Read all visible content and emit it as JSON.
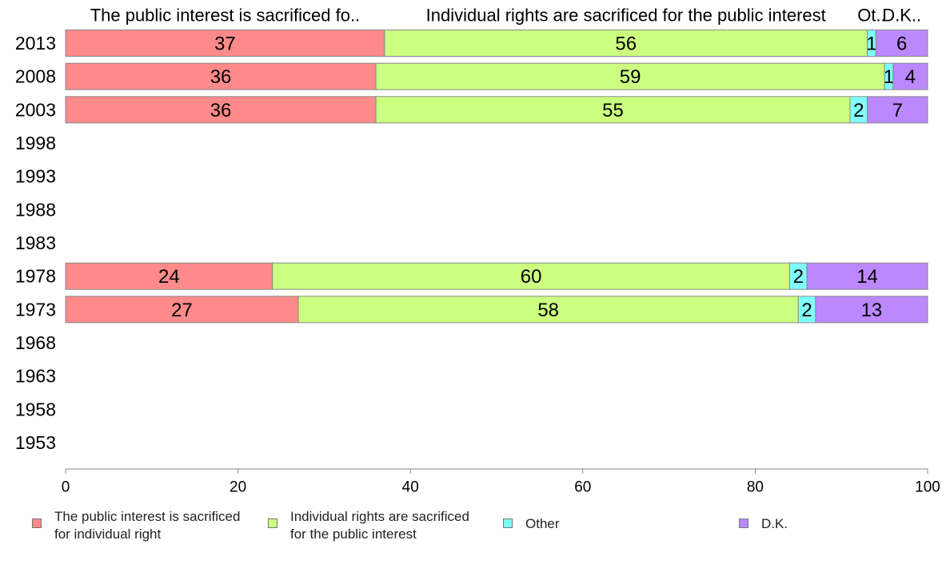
{
  "chart_data": {
    "type": "bar",
    "orientation": "horizontal",
    "stacked": true,
    "categories": [
      "2013",
      "2008",
      "2003",
      "1998",
      "1993",
      "1988",
      "1983",
      "1978",
      "1973",
      "1968",
      "1963",
      "1958",
      "1953"
    ],
    "series": [
      {
        "name": "The public interest is sacrificed for individual right",
        "header": "The public interest is sacrificed fo..",
        "color": "#ff8a8a",
        "values": [
          37,
          36,
          36,
          null,
          null,
          null,
          null,
          24,
          27,
          null,
          null,
          null,
          null
        ]
      },
      {
        "name": "Individual rights are sacrificed for the public interest",
        "header": "Individual rights are sacrificed for the public interest",
        "color": "#ccff80",
        "values": [
          56,
          59,
          55,
          null,
          null,
          null,
          null,
          60,
          58,
          null,
          null,
          null,
          null
        ]
      },
      {
        "name": "Other",
        "header": "Ot..",
        "color": "#80ffff",
        "values": [
          1,
          1,
          2,
          null,
          null,
          null,
          null,
          2,
          2,
          null,
          null,
          null,
          null
        ]
      },
      {
        "name": "D.K.",
        "header": "D.K..",
        "color": "#bb88ff",
        "values": [
          6,
          4,
          7,
          null,
          null,
          null,
          null,
          14,
          13,
          null,
          null,
          null,
          null
        ]
      }
    ],
    "xlim": [
      0,
      100
    ],
    "xticks": [
      0,
      20,
      40,
      60,
      80,
      100
    ],
    "legend_position": "bottom"
  },
  "legend": [
    {
      "lines": [
        "The public interest is sacrificed",
        "for individual right"
      ],
      "color": "#ff8a8a"
    },
    {
      "lines": [
        "Individual rights are sacrificed",
        "for the public interest"
      ],
      "color": "#ccff80"
    },
    {
      "lines": [
        "Other"
      ],
      "color": "#80ffff"
    },
    {
      "lines": [
        "D.K."
      ],
      "color": "#bb88ff"
    }
  ]
}
